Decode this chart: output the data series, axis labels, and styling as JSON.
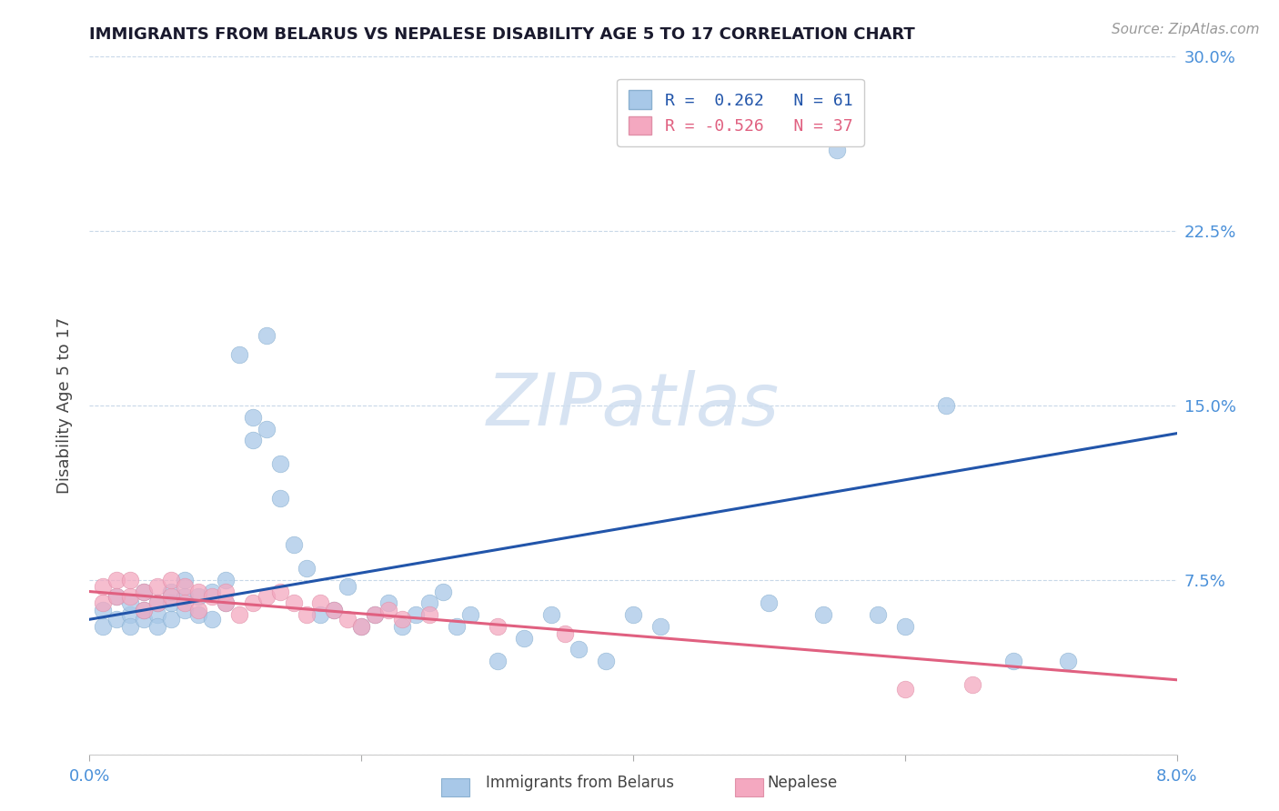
{
  "title": "IMMIGRANTS FROM BELARUS VS NEPALESE DISABILITY AGE 5 TO 17 CORRELATION CHART",
  "source": "Source: ZipAtlas.com",
  "ylabel": "Disability Age 5 to 17",
  "xlim": [
    0.0,
    0.08
  ],
  "ylim": [
    0.0,
    0.3
  ],
  "xticks": [
    0.0,
    0.02,
    0.04,
    0.06,
    0.08
  ],
  "xticklabels": [
    "0.0%",
    "",
    "",
    "",
    "8.0%"
  ],
  "yticks": [
    0.0,
    0.075,
    0.15,
    0.225,
    0.3
  ],
  "right_yticklabels": [
    "",
    "7.5%",
    "15.0%",
    "22.5%",
    "30.0%"
  ],
  "blue_R": 0.262,
  "blue_N": 61,
  "pink_R": -0.526,
  "pink_N": 37,
  "blue_color": "#a8c8e8",
  "pink_color": "#f4a8c0",
  "blue_line_color": "#2255aa",
  "pink_line_color": "#e06080",
  "watermark": "ZIPatlas",
  "background_color": "#ffffff",
  "grid_color": "#c8d8e8",
  "title_color": "#1a1a2e",
  "tick_label_color": "#4a90d9",
  "blue_scatter_x": [
    0.001,
    0.001,
    0.002,
    0.002,
    0.003,
    0.003,
    0.003,
    0.004,
    0.004,
    0.004,
    0.005,
    0.005,
    0.005,
    0.006,
    0.006,
    0.006,
    0.007,
    0.007,
    0.007,
    0.008,
    0.008,
    0.009,
    0.009,
    0.01,
    0.01,
    0.011,
    0.012,
    0.012,
    0.013,
    0.013,
    0.014,
    0.014,
    0.015,
    0.016,
    0.017,
    0.018,
    0.019,
    0.02,
    0.021,
    0.022,
    0.023,
    0.024,
    0.025,
    0.026,
    0.027,
    0.028,
    0.03,
    0.032,
    0.034,
    0.036,
    0.038,
    0.04,
    0.042,
    0.05,
    0.054,
    0.055,
    0.058,
    0.06,
    0.063,
    0.068,
    0.072
  ],
  "blue_scatter_y": [
    0.055,
    0.062,
    0.058,
    0.068,
    0.06,
    0.055,
    0.065,
    0.058,
    0.062,
    0.07,
    0.06,
    0.055,
    0.065,
    0.058,
    0.065,
    0.07,
    0.062,
    0.068,
    0.075,
    0.06,
    0.068,
    0.07,
    0.058,
    0.075,
    0.065,
    0.172,
    0.145,
    0.135,
    0.18,
    0.14,
    0.125,
    0.11,
    0.09,
    0.08,
    0.06,
    0.062,
    0.072,
    0.055,
    0.06,
    0.065,
    0.055,
    0.06,
    0.065,
    0.07,
    0.055,
    0.06,
    0.04,
    0.05,
    0.06,
    0.045,
    0.04,
    0.06,
    0.055,
    0.065,
    0.06,
    0.26,
    0.06,
    0.055,
    0.15,
    0.04,
    0.04
  ],
  "pink_scatter_x": [
    0.001,
    0.001,
    0.002,
    0.002,
    0.003,
    0.003,
    0.004,
    0.004,
    0.005,
    0.005,
    0.006,
    0.006,
    0.007,
    0.007,
    0.008,
    0.008,
    0.009,
    0.01,
    0.01,
    0.011,
    0.012,
    0.013,
    0.014,
    0.015,
    0.016,
    0.017,
    0.018,
    0.019,
    0.02,
    0.021,
    0.022,
    0.023,
    0.025,
    0.03,
    0.035,
    0.06,
    0.065
  ],
  "pink_scatter_y": [
    0.072,
    0.065,
    0.075,
    0.068,
    0.068,
    0.075,
    0.07,
    0.062,
    0.072,
    0.065,
    0.068,
    0.075,
    0.072,
    0.065,
    0.07,
    0.062,
    0.068,
    0.07,
    0.065,
    0.06,
    0.065,
    0.068,
    0.07,
    0.065,
    0.06,
    0.065,
    0.062,
    0.058,
    0.055,
    0.06,
    0.062,
    0.058,
    0.06,
    0.055,
    0.052,
    0.028,
    0.03
  ],
  "blue_line_x": [
    0.0,
    0.08
  ],
  "blue_line_y": [
    0.058,
    0.138
  ],
  "pink_line_x": [
    0.0,
    0.08
  ],
  "pink_line_y": [
    0.07,
    0.032
  ],
  "legend_blue_label": "Immigrants from Belarus",
  "legend_pink_label": "Nepalese"
}
